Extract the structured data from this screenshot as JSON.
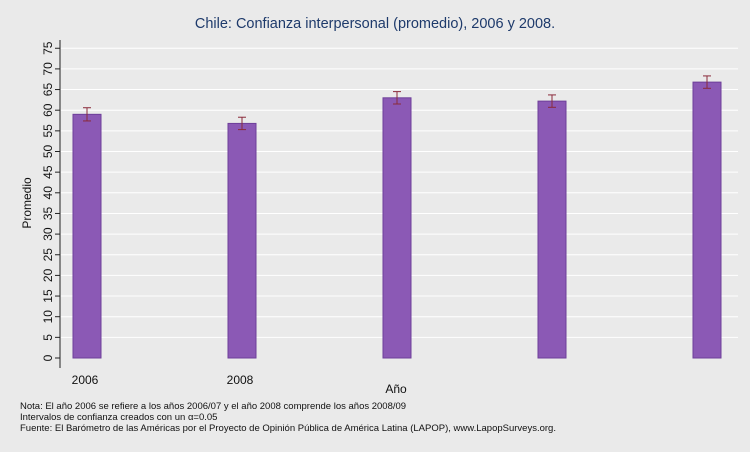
{
  "chart_data": {
    "type": "bar",
    "title": "Chile: Confianza interpersonal (promedio), 2006 y 2008.",
    "xlabel": "Año",
    "ylabel": "Promedio",
    "ylim": [
      0,
      75
    ],
    "yticks": [
      0,
      5,
      10,
      15,
      20,
      25,
      30,
      35,
      40,
      45,
      50,
      55,
      60,
      65,
      70,
      75
    ],
    "x_tick_labels": [
      "2006",
      "2008"
    ],
    "grid": true,
    "categories": [
      "2006",
      "2008",
      "",
      "",
      ""
    ],
    "values": [
      59.0,
      56.8,
      63.0,
      62.2,
      66.8
    ],
    "ci_low": [
      57.4,
      55.3,
      61.5,
      60.7,
      65.3
    ],
    "ci_high": [
      60.6,
      58.3,
      64.5,
      63.7,
      68.3
    ],
    "colors": {
      "bar": "#8b59b5",
      "bar_stroke": "#6e3f99",
      "error_bar": "#8a2a3a",
      "grid": "#ffffff",
      "plot_bg": "#eaeaea"
    }
  },
  "notes": {
    "line1": "Nota: El año 2006 se refiere a los años 2006/07 y el año 2008 comprende los años 2008/09",
    "line2": "Intervalos de confianza creados con un α=0.05",
    "line3": "Fuente: El Barómetro de las Américas por el Proyecto de Opinión Pública de América Latina (LAPOP), www.LapopSurveys.org."
  }
}
